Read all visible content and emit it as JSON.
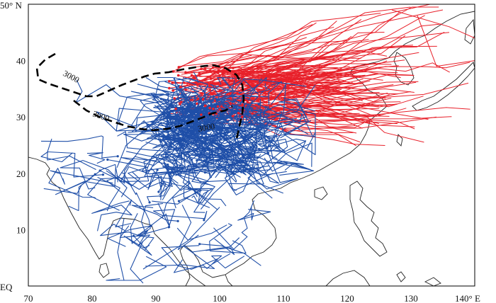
{
  "map": {
    "x_axis": {
      "range": [
        70,
        140
      ],
      "ticks": [
        70,
        80,
        90,
        100,
        110,
        120,
        130
      ],
      "tick_labels": [
        "70",
        "80",
        "90",
        "100",
        "110",
        "120",
        "130"
      ],
      "end_label": "140° E"
    },
    "y_axis": {
      "range": [
        0,
        50
      ],
      "ticks": [
        10,
        20,
        30,
        40
      ],
      "tick_labels": [
        "10",
        "20",
        "30",
        "40"
      ],
      "top_label": "50° N",
      "bottom_label": "EQ"
    },
    "contour": {
      "value": 3000,
      "labels": [
        "3000",
        "3000",
        "3000"
      ],
      "color": "#000000",
      "style": "dashed"
    },
    "track_groups": [
      {
        "color": "#e8202a",
        "region": "eastward tracks"
      },
      {
        "color": "#1f4fa8",
        "region": "plateau and southern tracks"
      }
    ],
    "colors": {
      "red_tracks": "#e8202a",
      "blue_tracks": "#1f4fa8",
      "coastline": "#222222"
    }
  }
}
